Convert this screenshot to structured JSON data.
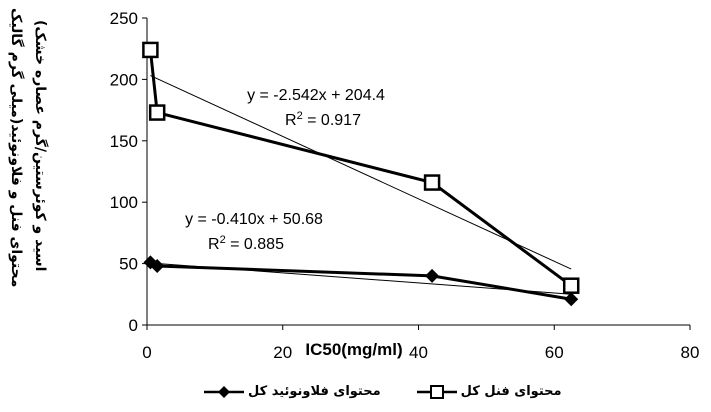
{
  "chart_data": {
    "type": "scatter",
    "xlabel": "IC50(mg/ml)",
    "ylabel_line1": "محتوای فنل و فلاونوئید(میلی گرم گالیک",
    "ylabel_line2": "اسید و کوئرستین/گرم عصاره خشک)",
    "xlim": [
      0,
      80
    ],
    "ylim": [
      0,
      250
    ],
    "xticks": [
      0,
      20,
      40,
      60,
      80
    ],
    "yticks": [
      0,
      50,
      100,
      150,
      200,
      250
    ],
    "grid": false,
    "legend_position": "bottom",
    "series": [
      {
        "name": "محتوای فنل کل",
        "marker": "square",
        "x": [
          0.5,
          1.5,
          42.0,
          62.5
        ],
        "y": [
          224,
          173,
          116,
          32
        ],
        "trendline": {
          "slope": -2.542,
          "intercept": 204.4,
          "x_range": [
            0.5,
            62.5
          ]
        },
        "equation": "y = -2.542x + 204.4",
        "r2_label": "R",
        "r2_value": " = 0.917"
      },
      {
        "name": "محتوای فلاونوئید کل",
        "marker": "diamond",
        "x": [
          0.5,
          1.5,
          42.0,
          62.5
        ],
        "y": [
          51,
          48,
          40,
          21
        ],
        "trendline": {
          "slope": -0.41,
          "intercept": 50.68,
          "x_range": [
            0.5,
            62.5
          ]
        },
        "equation": "y = -0.410x + 50.68",
        "r2_label": "R",
        "r2_value": " = 0.885"
      }
    ]
  }
}
